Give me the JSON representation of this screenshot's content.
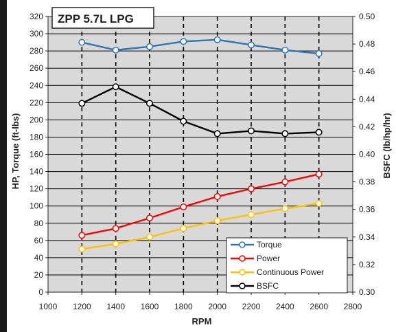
{
  "chart_data": {
    "type": "line",
    "title": "ZPP 5.7L LPG",
    "xlabel": "RPM",
    "ylabel": "HP, Torque (ft-lbs)",
    "y2label": "BSFC (lb/hp/hr)",
    "xlim": [
      1000,
      2800
    ],
    "ylim": [
      0,
      320
    ],
    "y2lim": [
      0.3,
      0.5
    ],
    "xticks": [
      "1000",
      "1200",
      "1400",
      "1600",
      "1800",
      "2000",
      "2200",
      "2400",
      "2600",
      "2800"
    ],
    "yticks": [
      "0",
      "20",
      "40",
      "60",
      "80",
      "100",
      "120",
      "140",
      "160",
      "180",
      "200",
      "220",
      "240",
      "260",
      "280",
      "300",
      "320"
    ],
    "y2ticks": [
      "0.30",
      "0.32",
      "0.34",
      "0.36",
      "0.38",
      "0.40",
      "0.42",
      "0.44",
      "0.46",
      "0.48",
      "0.50"
    ],
    "x": [
      1200,
      1400,
      1600,
      1800,
      2000,
      2200,
      2400,
      2600
    ],
    "series": [
      {
        "name": "Torque",
        "axis": "left",
        "color": "#2e75b6",
        "values": [
          290,
          281,
          285,
          291,
          293,
          287,
          281,
          277
        ]
      },
      {
        "name": "Power",
        "axis": "left",
        "color": "#ff0000",
        "values": [
          66,
          74,
          86,
          99,
          111,
          120,
          128,
          137
        ]
      },
      {
        "name": "Continuous Power",
        "axis": "left",
        "color": "#ffc000",
        "values": [
          50,
          56,
          64,
          74,
          83,
          90,
          97,
          103
        ]
      },
      {
        "name": "BSFC",
        "axis": "right",
        "color": "#000000",
        "values": [
          0.437,
          0.449,
          0.437,
          0.424,
          0.415,
          0.417,
          0.415,
          0.416
        ]
      }
    ],
    "grid": "vertical-dashed",
    "legend_position": "bottom-right",
    "background": "#d9d9d9"
  }
}
